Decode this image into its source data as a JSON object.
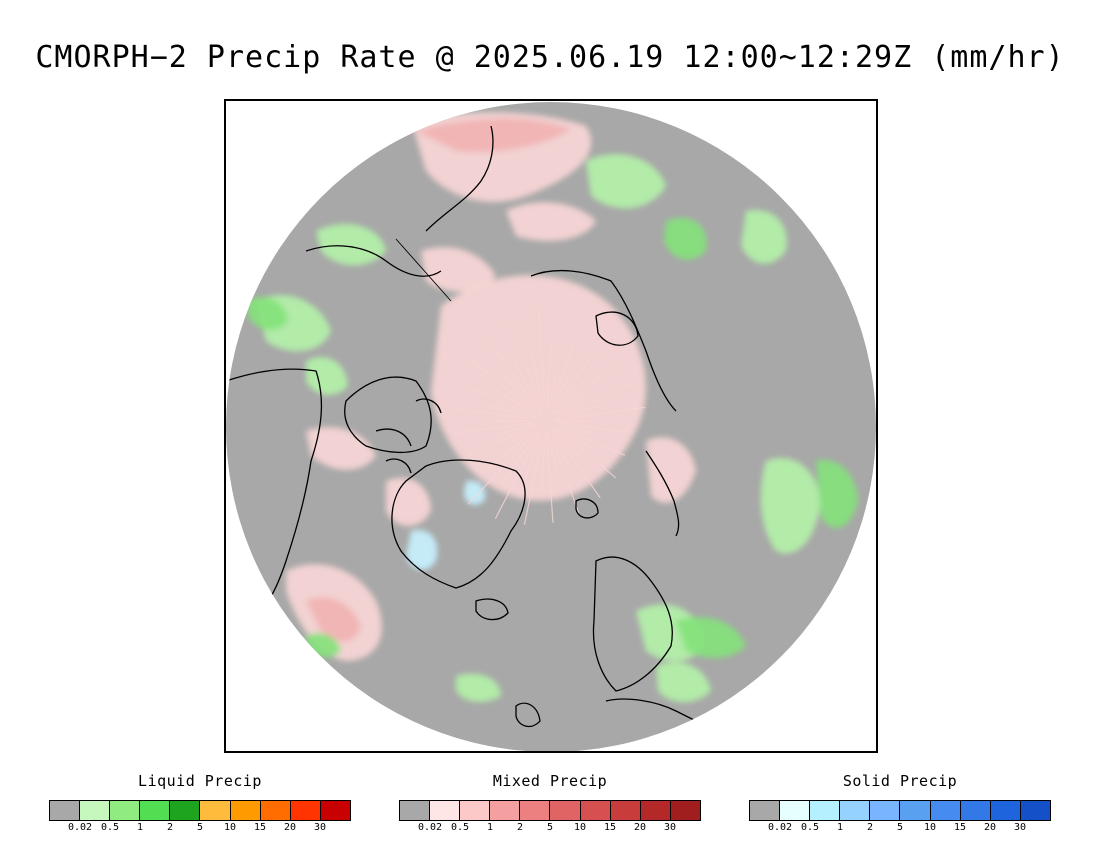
{
  "title": "CMORPH−2 Precip Rate @ 2025.06.19 12:00~12:29Z (mm/hr)",
  "map": {
    "background": "#a8a8a8",
    "coastline": "#000000",
    "colors": {
      "liquid_light": "#b4f2a8",
      "liquid_mid": "#84e27a",
      "liquid_strong": "#4fd452",
      "mixed_light": "#f9d6d6",
      "mixed_mid": "#f2b3b3",
      "mixed_strong": "#e67f7f",
      "solid_light": "#c7f2ff",
      "spot_yellow": "#f4b428",
      "spot_red": "#c81e1e"
    }
  },
  "legends": [
    {
      "title": "Liquid Precip",
      "colors": [
        "#a8a8a8",
        "#c6f7bd",
        "#90eb80",
        "#52de52",
        "#1ea41e",
        "#ffbc3c",
        "#ff9b00",
        "#ff6c00",
        "#ff3400",
        "#c80000"
      ],
      "ticks": [
        "0.02",
        "0.5",
        "1",
        "2",
        "5",
        "10",
        "15",
        "20",
        "30"
      ]
    },
    {
      "title": "Mixed Precip",
      "colors": [
        "#a8a8a8",
        "#ffe6e6",
        "#fcc8c8",
        "#f5a0a0",
        "#ec8080",
        "#e06464",
        "#d65050",
        "#c83c3c",
        "#b42828",
        "#a01e1e"
      ],
      "ticks": [
        "0.02",
        "0.5",
        "1",
        "2",
        "5",
        "10",
        "15",
        "20",
        "30"
      ]
    },
    {
      "title": "Solid Precip",
      "colors": [
        "#a8a8a8",
        "#e6ffff",
        "#b4f0ff",
        "#96d2ff",
        "#78b4ff",
        "#5aa0f0",
        "#468cf0",
        "#3278e6",
        "#1e64dc",
        "#1450c8"
      ],
      "ticks": [
        "0.02",
        "0.5",
        "1",
        "2",
        "5",
        "10",
        "15",
        "20",
        "30"
      ]
    }
  ]
}
